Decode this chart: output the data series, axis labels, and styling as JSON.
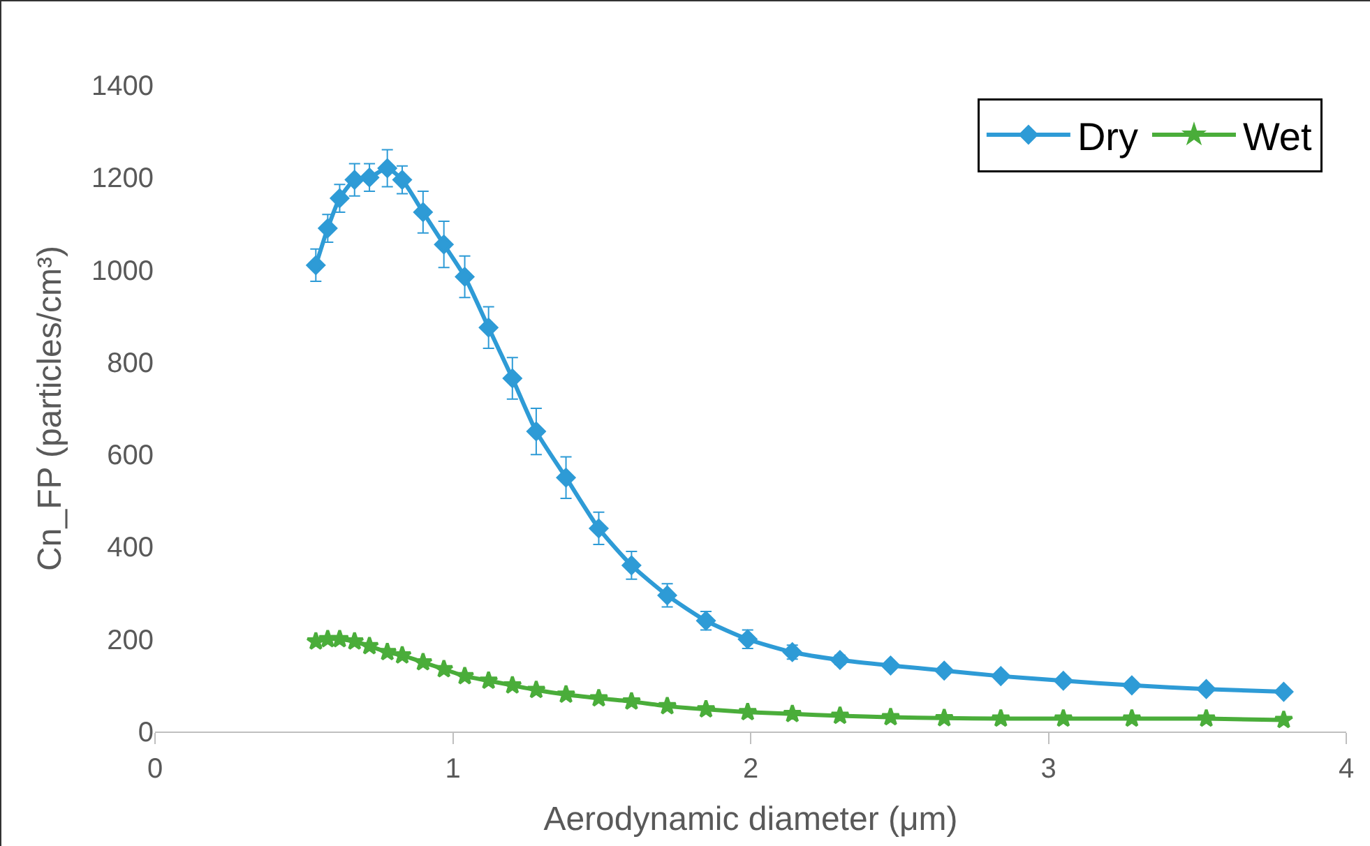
{
  "chart_data": {
    "type": "line",
    "xlabel": "Aerodynamic diameter (μm)",
    "ylabel": "Cn_FP (particles/cm³)",
    "xlim": [
      0,
      4
    ],
    "xticks": [
      0,
      1,
      2,
      3,
      4
    ],
    "ylim": [
      0,
      1400
    ],
    "yticks": [
      0,
      200,
      400,
      600,
      800,
      1000,
      1200,
      1400
    ],
    "grid": false,
    "legend": "top right",
    "line_style": "solid",
    "x": [
      0.54,
      0.58,
      0.62,
      0.67,
      0.72,
      0.78,
      0.83,
      0.9,
      0.97,
      1.04,
      1.12,
      1.2,
      1.28,
      1.38,
      1.49,
      1.6,
      1.72,
      1.85,
      1.99,
      2.14,
      2.3,
      2.47,
      2.65,
      2.84,
      3.05,
      3.28,
      3.53,
      3.79
    ],
    "series": [
      {
        "name": "Dry",
        "color": "#2e9bd6",
        "marker": "diamond",
        "values": [
          1010,
          1090,
          1155,
          1195,
          1200,
          1220,
          1195,
          1125,
          1055,
          985,
          875,
          765,
          650,
          550,
          440,
          360,
          295,
          240,
          200,
          172,
          155,
          143,
          132,
          120,
          110,
          100,
          92,
          86
        ],
        "errors": [
          35,
          30,
          30,
          35,
          30,
          40,
          30,
          45,
          50,
          45,
          45,
          45,
          50,
          45,
          35,
          30,
          25,
          20,
          20,
          15,
          10,
          null,
          null,
          null,
          null,
          null,
          null,
          null
        ]
      },
      {
        "name": "Wet",
        "color": "#4aad3a",
        "marker": "star",
        "values": [
          195,
          200,
          200,
          195,
          185,
          172,
          165,
          150,
          135,
          120,
          110,
          100,
          90,
          80,
          72,
          65,
          55,
          48,
          42,
          38,
          34,
          31,
          29,
          28,
          28,
          28,
          28,
          25
        ]
      }
    ]
  }
}
